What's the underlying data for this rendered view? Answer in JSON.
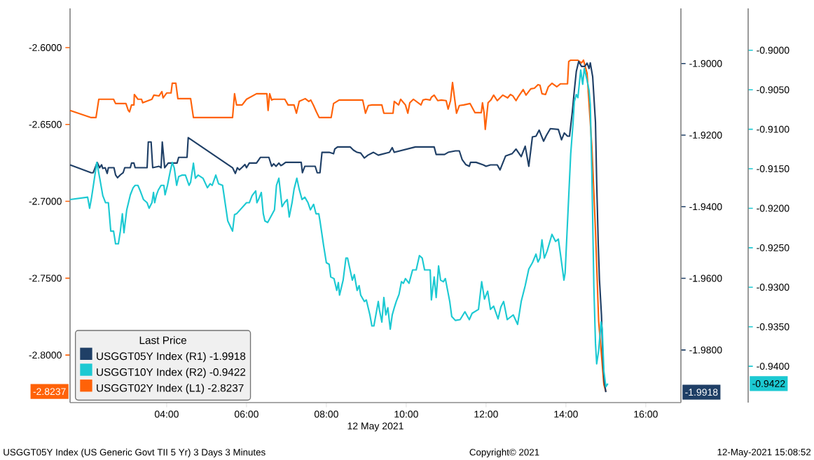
{
  "chart_data": {
    "type": "line",
    "xlabel": "12 May 2021",
    "legend_title": "Last Price",
    "legend": "bottom left",
    "annotations": [
      "USGGT05Y Index (US Generic Govt TII 5 Yr) 3 Days 3 Minutes",
      "Copyright© 2021",
      "12-May-2021 15:08:52",
      "-1.9918",
      "-0.9422",
      "-2.8237"
    ],
    "xlim": [
      1.58,
      16.88
    ],
    "xticks": [
      {
        "value": 4,
        "label": "04:00"
      },
      {
        "value": 6,
        "label": "06:00"
      },
      {
        "value": 8,
        "label": "08:00"
      },
      {
        "value": 10,
        "label": "10:00"
      },
      {
        "value": 12,
        "label": "12:00"
      },
      {
        "value": 14,
        "label": "14:00"
      },
      {
        "value": 16,
        "label": "16:00"
      }
    ],
    "ylim": [
      -2.8309,
      -2.5745
    ],
    "yticks": [
      {
        "value": -2.8,
        "label": "-2.8000"
      },
      {
        "value": -2.75,
        "label": "-2.7500"
      },
      {
        "value": -2.7,
        "label": "-2.7000"
      },
      {
        "value": -2.65,
        "label": "-2.6500"
      },
      {
        "value": -2.6,
        "label": "-2.6000"
      }
    ],
    "y2lim": [
      -1.9947,
      -1.8846
    ],
    "y2ticks": [
      {
        "value": -1.98,
        "label": "-1.9800"
      },
      {
        "value": -1.96,
        "label": "-1.9600"
      },
      {
        "value": -1.94,
        "label": "-1.9400"
      },
      {
        "value": -1.92,
        "label": "-1.9200"
      },
      {
        "value": -1.9,
        "label": "-1.9000"
      }
    ],
    "y3lim": [
      -0.9446,
      -0.8947
    ],
    "y3ticks": [
      {
        "value": -0.94,
        "label": "-0.9400"
      },
      {
        "value": -0.935,
        "label": "-0.9350"
      },
      {
        "value": -0.93,
        "label": "-0.9300"
      },
      {
        "value": -0.925,
        "label": "-0.9250"
      },
      {
        "value": -0.92,
        "label": "-0.9200"
      },
      {
        "value": -0.915,
        "label": "-0.9150"
      },
      {
        "value": -0.91,
        "label": "-0.9100"
      },
      {
        "value": -0.905,
        "label": "-0.9050"
      },
      {
        "value": -0.9,
        "label": "-0.9000"
      }
    ],
    "series": [
      {
        "name": "USGGT05Y Index  (R1) -1.9918",
        "color": "#1f3f66",
        "axis": "y2",
        "x": [
          1.58,
          2.11,
          2.16,
          2.26,
          2.32,
          2.37,
          2.4,
          2.46,
          2.51,
          2.54,
          2.68,
          2.72,
          2.77,
          2.84,
          2.91,
          2.95,
          3.09,
          3.12,
          3.18,
          3.21,
          3.51,
          3.54,
          3.61,
          3.65,
          3.81,
          3.86,
          3.89,
          3.95,
          4.04,
          4.26,
          4.3,
          4.51,
          4.54,
          5.65,
          5.72,
          5.77,
          5.82,
          5.88,
          5.96,
          6.0,
          6.07,
          6.25,
          6.35,
          6.56,
          6.63,
          6.68,
          6.74,
          6.81,
          6.86,
          6.91,
          6.98,
          7.07,
          7.37,
          7.4,
          7.46,
          7.72,
          7.77,
          7.84,
          7.89,
          8.07,
          8.18,
          8.21,
          8.28,
          8.6,
          8.68,
          8.77,
          8.86,
          8.95,
          9.04,
          9.18,
          9.3,
          9.58,
          9.65,
          9.7,
          10.23,
          10.7,
          10.75,
          10.96,
          11.05,
          11.14,
          11.23,
          11.33,
          11.4,
          11.49,
          11.58,
          11.61,
          11.75,
          11.93,
          12.0,
          12.11,
          12.28,
          12.35,
          12.49,
          12.65,
          12.75,
          12.88,
          12.98,
          13.07,
          13.16,
          13.25,
          13.33,
          13.44,
          13.51,
          13.61,
          13.81,
          13.89,
          13.96,
          14.04,
          14.09,
          14.16,
          14.21,
          14.26,
          14.32,
          14.39,
          14.47,
          14.53,
          14.58,
          14.61,
          14.67,
          14.74,
          14.77,
          14.81,
          14.84,
          14.89,
          14.93,
          14.96,
          15.0
        ],
        "values": [
          -1.9283,
          -1.9305,
          -1.9305,
          -1.9276,
          -1.9291,
          -1.9283,
          -1.9293,
          -1.9291,
          -1.9307,
          -1.9291,
          -1.9291,
          -1.9311,
          -1.9319,
          -1.9311,
          -1.9305,
          -1.9291,
          -1.9291,
          -1.9278,
          -1.9278,
          -1.9291,
          -1.9291,
          -1.9219,
          -1.9219,
          -1.9291,
          -1.9287,
          -1.9291,
          -1.9219,
          -1.9291,
          -1.9278,
          -1.9278,
          -1.9262,
          -1.9262,
          -1.9207,
          -1.9291,
          -1.9307,
          -1.9291,
          -1.9297,
          -1.9291,
          -1.9282,
          -1.9291,
          -1.9278,
          -1.9278,
          -1.9262,
          -1.9262,
          -1.9287,
          -1.928,
          -1.9287,
          -1.9278,
          -1.9285,
          -1.9282,
          -1.9276,
          -1.9276,
          -1.9276,
          -1.9305,
          -1.9287,
          -1.9287,
          -1.9305,
          -1.9305,
          -1.9248,
          -1.9248,
          -1.9252,
          -1.9239,
          -1.9233,
          -1.9233,
          -1.9242,
          -1.9248,
          -1.925,
          -1.9264,
          -1.9256,
          -1.9248,
          -1.9256,
          -1.9248,
          -1.9235,
          -1.9248,
          -1.9233,
          -1.9233,
          -1.9254,
          -1.9254,
          -1.9248,
          -1.9246,
          -1.9244,
          -1.9244,
          -1.9268,
          -1.9282,
          -1.9287,
          -1.9276,
          -1.9276,
          -1.9283,
          -1.9287,
          -1.9283,
          -1.9283,
          -1.9297,
          -1.9258,
          -1.9252,
          -1.9239,
          -1.926,
          -1.9231,
          -1.9287,
          -1.9205,
          -1.9203,
          -1.9186,
          -1.9217,
          -1.9201,
          -1.9182,
          -1.9184,
          -1.9213,
          -1.9194,
          -1.9203,
          -1.9203,
          -1.9135,
          -1.9076,
          -1.9022,
          -1.8994,
          -1.9008,
          -1.9008,
          -1.8999,
          -1.9014,
          -1.8998,
          -1.9037,
          -1.9164,
          -1.933,
          -1.9506,
          -1.9604,
          -1.9702,
          -1.9839,
          -1.9888,
          -1.9918
        ]
      },
      {
        "name": "USGGT10Y Index  (R2) -0.9422",
        "color": "#1cc9d2",
        "axis": "y3",
        "x": [
          1.58,
          2.02,
          2.07,
          2.12,
          2.25,
          2.32,
          2.4,
          2.47,
          2.54,
          2.6,
          2.67,
          2.72,
          2.79,
          2.84,
          2.89,
          2.93,
          3.0,
          3.09,
          3.16,
          3.21,
          3.28,
          3.33,
          3.42,
          3.51,
          3.56,
          3.63,
          3.67,
          3.7,
          3.74,
          3.79,
          3.86,
          3.93,
          3.96,
          4.02,
          4.09,
          4.14,
          4.19,
          4.25,
          4.3,
          4.39,
          4.47,
          4.56,
          4.6,
          4.67,
          4.72,
          4.79,
          4.91,
          5.02,
          5.09,
          5.14,
          5.23,
          5.3,
          5.4,
          5.53,
          5.65,
          5.7,
          5.75,
          6.0,
          6.07,
          6.14,
          6.23,
          6.26,
          6.3,
          6.37,
          6.42,
          6.46,
          6.53,
          6.7,
          6.75,
          6.81,
          6.89,
          6.95,
          7.02,
          7.07,
          7.14,
          7.19,
          7.26,
          7.32,
          7.39,
          7.46,
          7.54,
          7.6,
          7.68,
          7.74,
          7.81,
          7.84,
          7.93,
          8.0,
          8.07,
          8.11,
          8.19,
          8.26,
          8.3,
          8.33,
          8.42,
          8.49,
          8.53,
          8.65,
          8.7,
          8.77,
          8.82,
          8.86,
          8.95,
          9.0,
          9.09,
          9.14,
          9.19,
          9.3,
          9.33,
          9.39,
          9.44,
          9.49,
          9.54,
          9.6,
          9.65,
          9.7,
          9.75,
          9.82,
          9.88,
          9.93,
          9.98,
          10.07,
          10.16,
          10.25,
          10.33,
          10.4,
          10.46,
          10.54,
          10.6,
          10.63,
          10.7,
          10.75,
          10.81,
          10.86,
          10.93,
          10.98,
          11.09,
          11.14,
          11.23,
          11.35,
          11.47,
          11.58,
          11.65,
          11.81,
          11.89,
          11.96,
          12.04,
          12.11,
          12.19,
          12.3,
          12.37,
          12.44,
          12.53,
          12.68,
          12.79,
          12.84,
          12.88,
          12.98,
          13.07,
          13.16,
          13.25,
          13.3,
          13.35,
          13.4,
          13.46,
          13.53,
          13.65,
          13.74,
          13.81,
          13.86,
          13.95,
          13.98,
          14.12,
          14.18,
          14.21,
          14.26,
          14.3,
          14.37,
          14.42,
          14.46,
          14.53,
          14.58,
          14.61,
          14.65,
          14.7,
          14.74,
          14.77,
          14.82,
          14.88,
          14.91,
          14.95,
          15.0,
          15.05
        ],
        "values": [
          -0.9189,
          -0.9186,
          -0.92,
          -0.9186,
          -0.9142,
          -0.9161,
          -0.9184,
          -0.9193,
          -0.9193,
          -0.9229,
          -0.9229,
          -0.9245,
          -0.9245,
          -0.9229,
          -0.9207,
          -0.9231,
          -0.9202,
          -0.9183,
          -0.9174,
          -0.9171,
          -0.9171,
          -0.9177,
          -0.9189,
          -0.9193,
          -0.92,
          -0.9193,
          -0.918,
          -0.9193,
          -0.9184,
          -0.9177,
          -0.9171,
          -0.9171,
          -0.9183,
          -0.9171,
          -0.9153,
          -0.9142,
          -0.9149,
          -0.9171,
          -0.916,
          -0.9158,
          -0.9158,
          -0.9171,
          -0.9167,
          -0.9143,
          -0.9162,
          -0.9158,
          -0.9162,
          -0.9174,
          -0.9169,
          -0.9171,
          -0.9158,
          -0.9169,
          -0.9171,
          -0.9216,
          -0.9229,
          -0.9208,
          -0.9207,
          -0.9193,
          -0.9193,
          -0.9184,
          -0.9178,
          -0.9193,
          -0.9189,
          -0.918,
          -0.9207,
          -0.9216,
          -0.9218,
          -0.9202,
          -0.9171,
          -0.9162,
          -0.9198,
          -0.9193,
          -0.9189,
          -0.9211,
          -0.9193,
          -0.9176,
          -0.9162,
          -0.9176,
          -0.9189,
          -0.9186,
          -0.9193,
          -0.9202,
          -0.9195,
          -0.9207,
          -0.9207,
          -0.9216,
          -0.9247,
          -0.9269,
          -0.9271,
          -0.9287,
          -0.9289,
          -0.9304,
          -0.9294,
          -0.931,
          -0.9291,
          -0.9263,
          -0.9263,
          -0.9291,
          -0.9284,
          -0.9304,
          -0.9298,
          -0.931,
          -0.9318,
          -0.9316,
          -0.9335,
          -0.9349,
          -0.9349,
          -0.9318,
          -0.9329,
          -0.9344,
          -0.9313,
          -0.9335,
          -0.9326,
          -0.9353,
          -0.9335,
          -0.9326,
          -0.9318,
          -0.9309,
          -0.9293,
          -0.9295,
          -0.9289,
          -0.9295,
          -0.9278,
          -0.9278,
          -0.926,
          -0.9263,
          -0.9278,
          -0.9278,
          -0.9278,
          -0.9316,
          -0.9287,
          -0.9313,
          -0.9273,
          -0.9291,
          -0.9293,
          -0.9289,
          -0.9318,
          -0.9337,
          -0.9342,
          -0.9341,
          -0.9331,
          -0.9341,
          -0.9333,
          -0.9328,
          -0.9293,
          -0.9315,
          -0.9305,
          -0.9328,
          -0.9324,
          -0.934,
          -0.9325,
          -0.9318,
          -0.9341,
          -0.9335,
          -0.9347,
          -0.9331,
          -0.9318,
          -0.9298,
          -0.9277,
          -0.9269,
          -0.9258,
          -0.9268,
          -0.9263,
          -0.924,
          -0.9263,
          -0.9254,
          -0.9233,
          -0.9242,
          -0.9239,
          -0.9257,
          -0.9291,
          -0.9282,
          -0.9131,
          -0.9091,
          -0.9065,
          -0.9056,
          -0.906,
          -0.9025,
          -0.9043,
          -0.9023,
          -0.9038,
          -0.9051,
          -0.9069,
          -0.9158,
          -0.93,
          -0.9371,
          -0.9397,
          -0.938,
          -0.9344,
          -0.9353,
          -0.9406,
          -0.9426,
          -0.9422
        ]
      },
      {
        "name": "USGGT02Y Index  (L1) -2.8237",
        "color": "#ff6208",
        "axis": "y",
        "x": [
          1.58,
          2.11,
          2.23,
          2.3,
          2.67,
          2.72,
          2.98,
          3.04,
          3.07,
          3.12,
          3.18,
          3.19,
          3.28,
          3.37,
          3.4,
          3.63,
          3.68,
          3.81,
          3.88,
          3.91,
          4.0,
          4.11,
          4.14,
          4.23,
          4.28,
          4.6,
          4.67,
          5.65,
          5.7,
          5.75,
          5.89,
          6.0,
          6.25,
          6.51,
          6.54,
          6.58,
          6.63,
          6.68,
          6.96,
          7.04,
          7.19,
          7.25,
          7.32,
          7.47,
          7.56,
          7.61,
          7.68,
          7.75,
          7.82,
          8.12,
          8.18,
          8.32,
          8.91,
          8.98,
          9.05,
          9.14,
          9.39,
          9.44,
          9.67,
          9.7,
          9.81,
          9.86,
          9.98,
          10.04,
          10.09,
          10.18,
          10.37,
          10.42,
          10.49,
          10.6,
          10.63,
          10.7,
          10.79,
          10.88,
          11.0,
          11.05,
          11.11,
          11.16,
          11.26,
          11.33,
          11.44,
          11.6,
          11.72,
          11.88,
          11.91,
          11.95,
          11.98,
          12.05,
          12.12,
          12.19,
          12.28,
          12.42,
          12.54,
          12.61,
          12.67,
          12.75,
          12.81,
          12.93,
          13.0,
          13.12,
          13.21,
          13.3,
          13.35,
          13.4,
          13.49,
          13.56,
          13.65,
          13.77,
          13.86,
          14.04,
          14.07,
          14.12,
          14.3,
          14.39,
          14.44,
          14.53,
          14.65,
          14.74,
          14.82,
          14.88,
          14.95,
          15.0
        ],
        "values": [
          -2.6409,
          -2.6455,
          -2.6455,
          -2.6336,
          -2.6336,
          -2.6364,
          -2.6364,
          -2.6409,
          -2.6418,
          -2.6373,
          -2.6373,
          -2.6305,
          -2.6336,
          -2.6336,
          -2.6359,
          -2.6336,
          -2.6309,
          -2.6314,
          -2.6286,
          -2.6327,
          -2.6295,
          -2.6295,
          -2.6232,
          -2.6232,
          -2.6332,
          -2.6332,
          -2.6455,
          -2.6455,
          -2.63,
          -2.6373,
          -2.6373,
          -2.6336,
          -2.63,
          -2.63,
          -2.6409,
          -2.63,
          -2.6341,
          -2.6336,
          -2.6336,
          -2.6373,
          -2.6373,
          -2.6427,
          -2.635,
          -2.6332,
          -2.635,
          -2.6341,
          -2.6377,
          -2.6418,
          -2.6455,
          -2.6455,
          -2.6364,
          -2.6341,
          -2.6341,
          -2.6427,
          -2.6377,
          -2.6373,
          -2.6373,
          -2.6427,
          -2.6427,
          -2.635,
          -2.6373,
          -2.6336,
          -2.6373,
          -2.6427,
          -2.6359,
          -2.6336,
          -2.6373,
          -2.6341,
          -2.6336,
          -2.6341,
          -2.6323,
          -2.6309,
          -2.6345,
          -2.6341,
          -2.6345,
          -2.64,
          -2.6345,
          -2.6227,
          -2.6427,
          -2.6377,
          -2.6373,
          -2.6364,
          -2.6423,
          -2.6423,
          -2.6359,
          -2.6423,
          -2.6532,
          -2.6359,
          -2.6341,
          -2.6309,
          -2.6345,
          -2.6309,
          -2.6327,
          -2.6305,
          -2.6314,
          -2.6345,
          -2.6318,
          -2.6273,
          -2.6309,
          -2.6268,
          -2.6264,
          -2.6241,
          -2.6245,
          -2.63,
          -2.6305,
          -2.6255,
          -2.6232,
          -2.6255,
          -2.6236,
          -2.6236,
          -2.6091,
          -2.6082,
          -2.6082,
          -2.61,
          -2.6082,
          -2.6168,
          -2.6645,
          -2.7191,
          -2.7782,
          -2.7964,
          -2.8191,
          -2.8237
        ]
      }
    ]
  }
}
